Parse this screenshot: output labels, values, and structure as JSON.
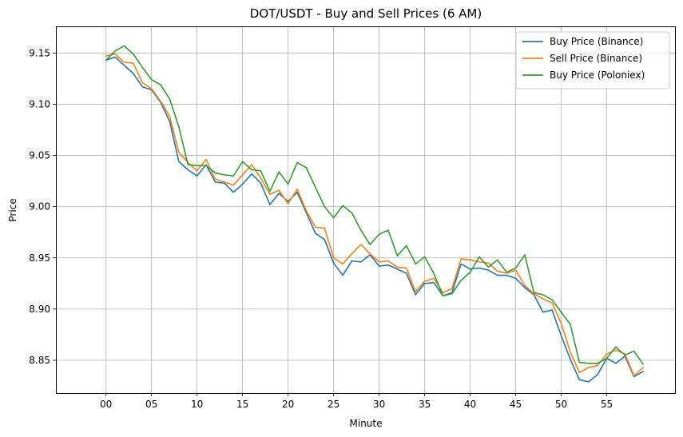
{
  "chart_data": {
    "type": "line",
    "title": "DOT/USDT - Buy and Sell Prices (6 AM)",
    "xlabel": "Minute",
    "ylabel": "Price",
    "xlim": [
      -5.5,
      62.5
    ],
    "ylim": [
      8.818,
      9.176
    ],
    "grid": true,
    "legend_position": "top-right",
    "x_ticks": [
      0,
      5,
      10,
      15,
      20,
      25,
      30,
      35,
      40,
      45,
      50,
      55
    ],
    "x_tick_labels": [
      "00",
      "05",
      "10",
      "15",
      "20",
      "25",
      "30",
      "35",
      "40",
      "45",
      "50",
      "55"
    ],
    "y_ticks": [
      8.85,
      8.9,
      8.95,
      9.0,
      9.05,
      9.1,
      9.15
    ],
    "y_tick_labels": [
      "8.85",
      "8.90",
      "8.95",
      "9.00",
      "9.05",
      "9.10",
      "9.15"
    ],
    "x": [
      0,
      1,
      2,
      3,
      4,
      5,
      6,
      7,
      8,
      9,
      10,
      11,
      12,
      13,
      14,
      15,
      16,
      17,
      18,
      19,
      20,
      21,
      22,
      23,
      24,
      25,
      26,
      27,
      28,
      29,
      30,
      31,
      32,
      33,
      34,
      35,
      36,
      37,
      38,
      39,
      40,
      41,
      42,
      43,
      44,
      45,
      46,
      47,
      48,
      49,
      50,
      51,
      52,
      53,
      54,
      55,
      56,
      57,
      58,
      59
    ],
    "series": [
      {
        "name": "Buy Price (Binance)",
        "color": "#1f77b4",
        "values": [
          9.143,
          9.146,
          9.138,
          9.13,
          9.117,
          9.114,
          9.102,
          9.083,
          9.044,
          9.036,
          9.03,
          9.041,
          9.024,
          9.023,
          9.014,
          9.022,
          9.032,
          9.023,
          9.002,
          9.013,
          9.005,
          9.014,
          8.994,
          8.974,
          8.968,
          8.945,
          8.933,
          8.947,
          8.946,
          8.953,
          8.942,
          8.943,
          8.939,
          8.935,
          8.914,
          8.925,
          8.926,
          8.913,
          8.916,
          8.944,
          8.939,
          8.94,
          8.938,
          8.933,
          8.933,
          8.93,
          8.921,
          8.914,
          8.897,
          8.899,
          8.874,
          8.851,
          8.831,
          8.829,
          8.836,
          8.852,
          8.847,
          8.854,
          8.834,
          8.839
        ]
      },
      {
        "name": "Sell Price (Binance)",
        "color": "#ff7f0e",
        "values": [
          9.147,
          9.149,
          9.141,
          9.14,
          9.121,
          9.115,
          9.103,
          9.088,
          9.053,
          9.043,
          9.035,
          9.046,
          9.027,
          9.024,
          9.021,
          9.031,
          9.041,
          9.028,
          9.012,
          9.016,
          9.003,
          9.017,
          8.996,
          8.98,
          8.979,
          8.95,
          8.944,
          8.954,
          8.963,
          8.954,
          8.946,
          8.947,
          8.941,
          8.94,
          8.917,
          8.927,
          8.93,
          8.916,
          8.92,
          8.949,
          8.948,
          8.946,
          8.945,
          8.937,
          8.935,
          8.938,
          8.923,
          8.915,
          8.91,
          8.906,
          8.886,
          8.858,
          8.838,
          8.843,
          8.845,
          8.856,
          8.86,
          8.856,
          8.835,
          8.843
        ]
      },
      {
        "name": "Buy Price (Poloniex)",
        "color": "#2ca02c",
        "values": [
          9.143,
          9.152,
          9.157,
          9.149,
          9.136,
          9.124,
          9.119,
          9.105,
          9.078,
          9.041,
          9.04,
          9.04,
          9.033,
          9.031,
          9.03,
          9.044,
          9.036,
          9.035,
          9.015,
          9.034,
          9.022,
          9.043,
          9.038,
          9.019,
          9.0,
          8.989,
          9.001,
          8.994,
          8.977,
          8.963,
          8.973,
          8.977,
          8.952,
          8.962,
          8.944,
          8.951,
          8.935,
          8.913,
          8.915,
          8.928,
          8.936,
          8.951,
          8.941,
          8.948,
          8.936,
          8.94,
          8.953,
          8.916,
          8.914,
          8.909,
          8.897,
          8.885,
          8.848,
          8.847,
          8.847,
          8.852,
          8.863,
          8.855,
          8.859,
          8.846
        ]
      }
    ]
  }
}
